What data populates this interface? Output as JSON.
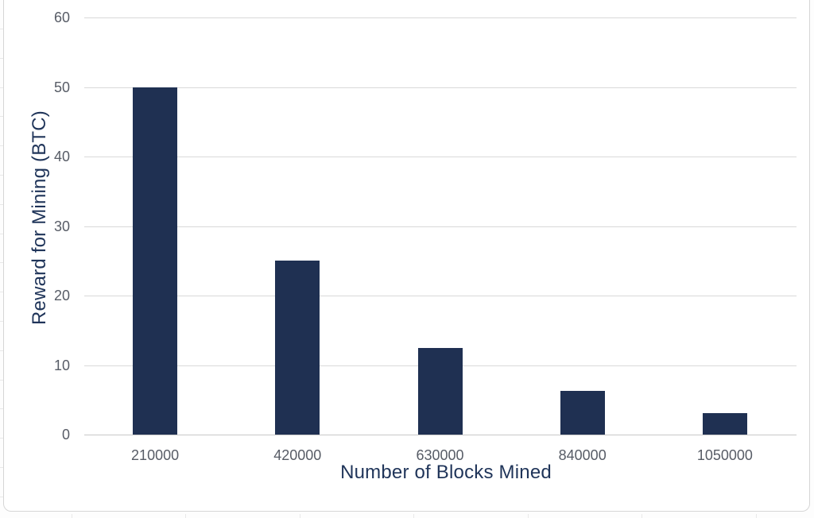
{
  "chart_data": {
    "type": "bar",
    "title": "",
    "categories": [
      "210000",
      "420000",
      "630000",
      "840000",
      "1050000"
    ],
    "values": [
      50,
      25,
      12.5,
      6.25,
      3.125
    ],
    "xlabel": "Number of Blocks Mined",
    "ylabel": "Reward for Mining (BTC)",
    "ylim": [
      0,
      60
    ],
    "yticks": [
      0,
      10,
      20,
      30,
      40,
      50,
      60
    ],
    "grid": "horizontal",
    "legend": "none",
    "bar_color": "#1f3052",
    "axis_title_color": "#1f3459",
    "tick_label_color": "#575c66",
    "gridline_color": "#d9d9d9"
  },
  "canvas": {
    "chart_background": "#ffffff",
    "chart_border_color": "#d6d6d6",
    "spreadsheet_gridline_color": "#e9e9e9"
  }
}
